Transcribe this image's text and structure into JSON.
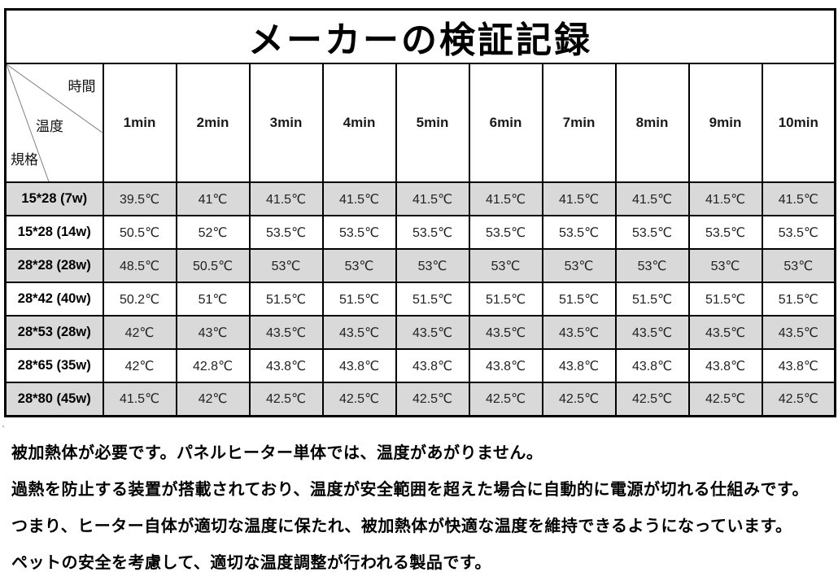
{
  "title": "メーカーの検証記録",
  "table": {
    "corner": {
      "time": "時間",
      "temperature": "温度",
      "spec": "規格"
    },
    "time_headers": [
      "1min",
      "2min",
      "3min",
      "4min",
      "5min",
      "6min",
      "7min",
      "8min",
      "9min",
      "10min"
    ],
    "rows": [
      {
        "spec": "15*28 (7w)",
        "temps": [
          "39.5℃",
          "41℃",
          "41.5℃",
          "41.5℃",
          "41.5℃",
          "41.5℃",
          "41.5℃",
          "41.5℃",
          "41.5℃",
          "41.5℃"
        ]
      },
      {
        "spec": "15*28 (14w)",
        "temps": [
          "50.5℃",
          "52℃",
          "53.5℃",
          "53.5℃",
          "53.5℃",
          "53.5℃",
          "53.5℃",
          "53.5℃",
          "53.5℃",
          "53.5℃"
        ]
      },
      {
        "spec": "28*28 (28w)",
        "temps": [
          "48.5℃",
          "50.5℃",
          "53℃",
          "53℃",
          "53℃",
          "53℃",
          "53℃",
          "53℃",
          "53℃",
          "53℃"
        ]
      },
      {
        "spec": "28*42 (40w)",
        "temps": [
          "50.2℃",
          "51℃",
          "51.5℃",
          "51.5℃",
          "51.5℃",
          "51.5℃",
          "51.5℃",
          "51.5℃",
          "51.5℃",
          "51.5℃"
        ]
      },
      {
        "spec": "28*53 (28w)",
        "temps": [
          "42℃",
          "43℃",
          "43.5℃",
          "43.5℃",
          "43.5℃",
          "43.5℃",
          "43.5℃",
          "43.5℃",
          "43.5℃",
          "43.5℃"
        ]
      },
      {
        "spec": "28*65 (35w)",
        "temps": [
          "42℃",
          "42.8℃",
          "43.8℃",
          "43.8℃",
          "43.8℃",
          "43.8℃",
          "43.8℃",
          "43.8℃",
          "43.8℃",
          "43.8℃"
        ]
      },
      {
        "spec": "28*80 (45w)",
        "temps": [
          "41.5℃",
          "42℃",
          "42.5℃",
          "42.5℃",
          "42.5℃",
          "42.5℃",
          "42.5℃",
          "42.5℃",
          "42.5℃",
          "42.5℃"
        ]
      }
    ],
    "shaded_row_color": "#d9d9d9",
    "border_color": "#000000"
  },
  "footer": {
    "stray_mark": "`",
    "lines": [
      "被加熱体が必要です。パネルヒーター単体では、温度があがりません。",
      "過熱を防止する装置が搭載されており、温度が安全範囲を超えた場合に自動的に電源が切れる仕組みです。",
      "つまり、ヒーター自体が適切な温度に保たれ、被加熱体が快適な温度を維持できるようになっています。",
      "ペットの安全を考慮して、適切な温度調整が行われる製品です。"
    ]
  }
}
